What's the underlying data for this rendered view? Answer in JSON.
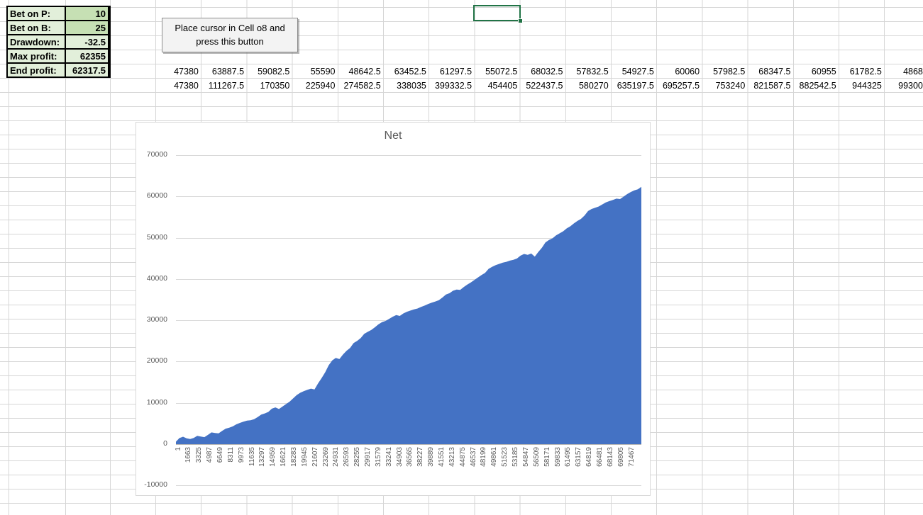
{
  "colors": {
    "area_fill": "#4472c4",
    "selection_green": "#217346",
    "table_label_bg": "#e2efda",
    "table_highlight_bg": "#c6e0b4",
    "sheet_gridline": "#d6d6d6",
    "chart_gridline": "#d9d9d9",
    "chart_text": "#595959"
  },
  "spreadsheet": {
    "summary_table": {
      "rows": [
        {
          "label": "Bet on P:",
          "value": "10"
        },
        {
          "label": "Bet on B:",
          "value": "25"
        },
        {
          "label": "Drawdown:",
          "value": "-32.5"
        },
        {
          "label": "Max profit:",
          "value": "62355"
        },
        {
          "label": "End profit:",
          "value": "62317.5"
        }
      ]
    },
    "button": {
      "line1": "Place cursor in Cell o8 and",
      "line2": "press this button"
    },
    "row5_values": [
      "47380",
      "63887.5",
      "59082.5",
      "55590",
      "48642.5",
      "63452.5",
      "61297.5",
      "55072.5",
      "68032.5",
      "57832.5",
      "54927.5",
      "60060",
      "57982.5",
      "68347.5",
      "60955",
      "61782.5",
      "4868"
    ],
    "row6_values": [
      "47380",
      "111267.5",
      "170350",
      "225940",
      "274582.5",
      "338035",
      "399332.5",
      "454405",
      "522437.5",
      "580270",
      "635197.5",
      "695257.5",
      "753240",
      "821587.5",
      "882542.5",
      "944325",
      "99300"
    ]
  },
  "chart_data": {
    "type": "area",
    "title": "Net",
    "xlabel": "",
    "ylabel": "",
    "legend": false,
    "grid": true,
    "ylim": [
      -10000,
      70000
    ],
    "y_ticks": [
      70000,
      60000,
      50000,
      40000,
      30000,
      20000,
      10000,
      0,
      -10000
    ],
    "x_tick_labels": [
      "1",
      "1663",
      "3325",
      "4987",
      "6649",
      "8311",
      "9973",
      "11635",
      "13297",
      "14959",
      "16621",
      "18283",
      "19945",
      "21607",
      "23269",
      "24931",
      "26593",
      "28255",
      "29917",
      "31579",
      "33241",
      "34903",
      "36565",
      "38227",
      "39889",
      "41551",
      "43213",
      "44875",
      "46537",
      "48199",
      "49861",
      "51523",
      "53185",
      "54847",
      "56509",
      "58171",
      "59833",
      "61495",
      "63157",
      "64819",
      "66481",
      "68143",
      "69805",
      "71467"
    ],
    "series": [
      {
        "name": "Net",
        "color": "#4472c4",
        "values": [
          600,
          1500,
          1800,
          1400,
          1250,
          1500,
          2000,
          1850,
          1700,
          2250,
          2850,
          2700,
          2600,
          3200,
          3750,
          4000,
          4300,
          4800,
          5150,
          5450,
          5700,
          5800,
          6050,
          6550,
          7150,
          7450,
          7800,
          8600,
          8900,
          8500,
          9100,
          9700,
          10300,
          11100,
          11900,
          12450,
          12850,
          13150,
          13450,
          13250,
          14700,
          16000,
          17400,
          19100,
          20300,
          20900,
          20600,
          21700,
          22600,
          23300,
          24500,
          25000,
          25700,
          26700,
          27200,
          27650,
          28300,
          29000,
          29550,
          29850,
          30350,
          30850,
          31250,
          31050,
          31650,
          32050,
          32350,
          32650,
          32850,
          33250,
          33550,
          33950,
          34250,
          34550,
          34850,
          35500,
          36250,
          36550,
          37150,
          37450,
          37350,
          38050,
          38650,
          39150,
          39750,
          40350,
          40950,
          41450,
          42450,
          42950,
          43350,
          43650,
          43950,
          44150,
          44450,
          44650,
          44950,
          45650,
          46050,
          45850,
          46150,
          45400,
          46550,
          47550,
          48850,
          49450,
          49850,
          50550,
          51050,
          51550,
          52250,
          52750,
          53450,
          54050,
          54550,
          55350,
          56450,
          56950,
          57250,
          57550,
          58050,
          58550,
          58850,
          59150,
          59450,
          59350,
          59950,
          60550,
          61050,
          61450,
          61700,
          62300
        ]
      }
    ]
  }
}
